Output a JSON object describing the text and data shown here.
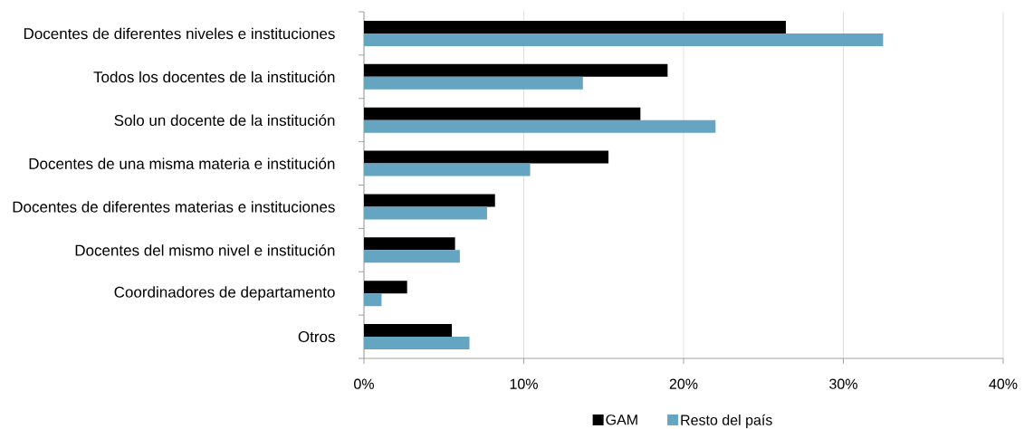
{
  "chart_data": {
    "type": "bar",
    "orientation": "horizontal",
    "categories": [
      "Docentes de diferentes niveles e instituciones",
      "Todos los docentes de la institución",
      "Solo un docente de la institución",
      "Docentes de una misma materia e institución",
      "Docentes de diferentes materias e instituciones",
      "Docentes del mismo nivel e institución",
      "Coordinadores de departamento",
      "Otros"
    ],
    "series": [
      {
        "name": "GAM",
        "color": "#000000",
        "values": [
          26.4,
          19.0,
          17.3,
          15.3,
          8.2,
          5.7,
          2.7,
          5.5
        ]
      },
      {
        "name": "Resto del país",
        "color": "#65a5c1",
        "values": [
          32.5,
          13.7,
          22.0,
          10.4,
          7.7,
          6.0,
          1.1,
          6.6
        ]
      }
    ],
    "xlim": [
      0,
      40
    ],
    "xticks": [
      {
        "value": 0,
        "label": "0%"
      },
      {
        "value": 10,
        "label": "10%"
      },
      {
        "value": 20,
        "label": "20%"
      },
      {
        "value": 30,
        "label": "30%"
      },
      {
        "value": 40,
        "label": "40%"
      }
    ],
    "grid": "x",
    "legend": "bottom"
  }
}
